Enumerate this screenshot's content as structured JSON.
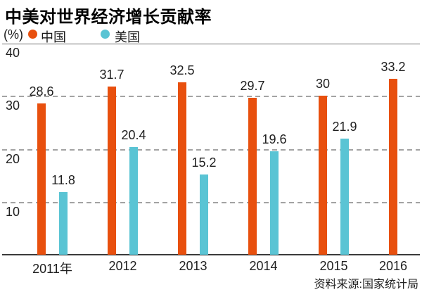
{
  "title": "中美对世界经济增长贡献率",
  "legend": {
    "unit": "(%)",
    "items": [
      {
        "label": "中国",
        "color": "#e8500e"
      },
      {
        "label": "美国",
        "color": "#5ac4d4"
      }
    ]
  },
  "source": "资料来源:国家统计局",
  "chart_data": {
    "type": "bar",
    "title": "中美对世界经济增长贡献率",
    "unit": "%",
    "categories": [
      "2011年",
      "2012",
      "2013",
      "2014",
      "2015",
      "2016"
    ],
    "series": [
      {
        "name": "中国",
        "color": "#e8500e",
        "values": [
          28.6,
          31.7,
          32.5,
          29.7,
          30,
          33.2
        ]
      },
      {
        "name": "美国",
        "color": "#5ac4d4",
        "values": [
          11.8,
          20.4,
          15.2,
          19.6,
          21.9,
          null
        ]
      }
    ],
    "ylim": [
      0,
      40
    ],
    "yticks": [
      40,
      30,
      20,
      10
    ],
    "grid": "dashed-horizontal",
    "legend_position": "top-left",
    "source": "资料来源:国家统计局"
  }
}
